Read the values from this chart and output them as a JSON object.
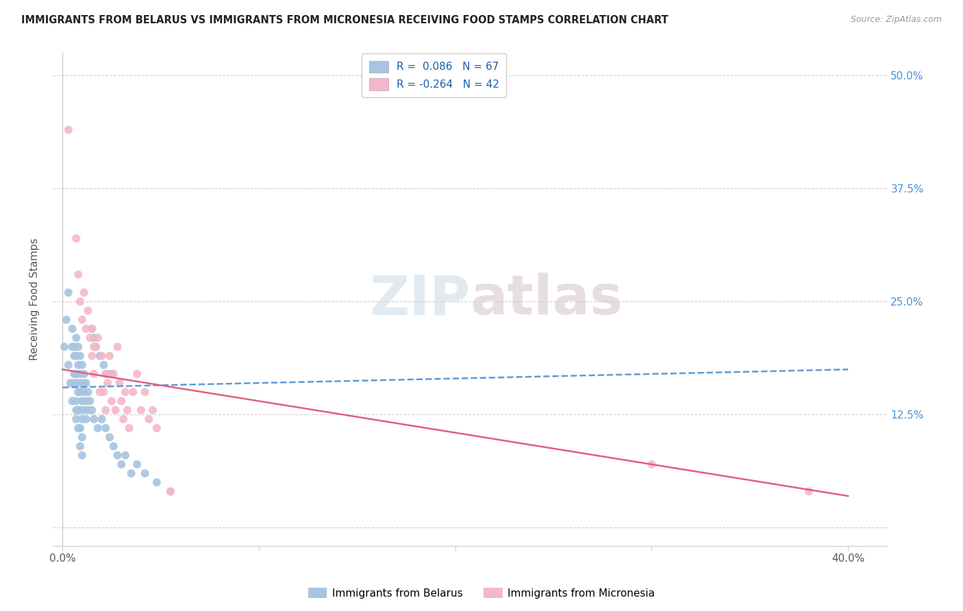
{
  "title": "IMMIGRANTS FROM BELARUS VS IMMIGRANTS FROM MICRONESIA RECEIVING FOOD STAMPS CORRELATION CHART",
  "source": "Source: ZipAtlas.com",
  "ylabel": "Receiving Food Stamps",
  "color_belarus": "#a8c4e0",
  "color_micronesia": "#f4b8c8",
  "color_line_belarus": "#5b9bd5",
  "color_line_micronesia": "#e0607e",
  "watermark_zip": "ZIP",
  "watermark_atlas": "atlas",
  "belarus_R": 0.086,
  "belarus_N": 67,
  "micronesia_R": -0.264,
  "micronesia_N": 42,
  "belarus_line_x": [
    0.0,
    0.4
  ],
  "belarus_line_y": [
    0.155,
    0.175
  ],
  "micronesia_line_x": [
    0.0,
    0.4
  ],
  "micronesia_line_y": [
    0.175,
    0.035
  ],
  "belarus_points": [
    [
      0.001,
      0.2
    ],
    [
      0.002,
      0.23
    ],
    [
      0.003,
      0.26
    ],
    [
      0.003,
      0.18
    ],
    [
      0.004,
      0.16
    ],
    [
      0.005,
      0.22
    ],
    [
      0.005,
      0.14
    ],
    [
      0.005,
      0.2
    ],
    [
      0.006,
      0.2
    ],
    [
      0.006,
      0.19
    ],
    [
      0.006,
      0.17
    ],
    [
      0.006,
      0.16
    ],
    [
      0.007,
      0.21
    ],
    [
      0.007,
      0.19
    ],
    [
      0.007,
      0.17
    ],
    [
      0.007,
      0.14
    ],
    [
      0.007,
      0.13
    ],
    [
      0.007,
      0.12
    ],
    [
      0.008,
      0.2
    ],
    [
      0.008,
      0.18
    ],
    [
      0.008,
      0.16
    ],
    [
      0.008,
      0.15
    ],
    [
      0.008,
      0.13
    ],
    [
      0.008,
      0.11
    ],
    [
      0.009,
      0.19
    ],
    [
      0.009,
      0.17
    ],
    [
      0.009,
      0.15
    ],
    [
      0.009,
      0.13
    ],
    [
      0.009,
      0.11
    ],
    [
      0.009,
      0.09
    ],
    [
      0.01,
      0.18
    ],
    [
      0.01,
      0.16
    ],
    [
      0.01,
      0.14
    ],
    [
      0.01,
      0.12
    ],
    [
      0.01,
      0.1
    ],
    [
      0.01,
      0.08
    ],
    [
      0.011,
      0.17
    ],
    [
      0.011,
      0.15
    ],
    [
      0.011,
      0.13
    ],
    [
      0.012,
      0.16
    ],
    [
      0.012,
      0.14
    ],
    [
      0.012,
      0.12
    ],
    [
      0.013,
      0.15
    ],
    [
      0.013,
      0.13
    ],
    [
      0.014,
      0.14
    ],
    [
      0.015,
      0.22
    ],
    [
      0.015,
      0.13
    ],
    [
      0.016,
      0.21
    ],
    [
      0.016,
      0.12
    ],
    [
      0.017,
      0.2
    ],
    [
      0.018,
      0.11
    ],
    [
      0.019,
      0.19
    ],
    [
      0.02,
      0.12
    ],
    [
      0.021,
      0.18
    ],
    [
      0.022,
      0.11
    ],
    [
      0.023,
      0.17
    ],
    [
      0.024,
      0.1
    ],
    [
      0.025,
      0.17
    ],
    [
      0.026,
      0.09
    ],
    [
      0.028,
      0.08
    ],
    [
      0.03,
      0.07
    ],
    [
      0.032,
      0.08
    ],
    [
      0.035,
      0.06
    ],
    [
      0.038,
      0.07
    ],
    [
      0.042,
      0.06
    ],
    [
      0.048,
      0.05
    ],
    [
      0.055,
      0.04
    ]
  ],
  "micronesia_points": [
    [
      0.003,
      0.44
    ],
    [
      0.007,
      0.32
    ],
    [
      0.008,
      0.28
    ],
    [
      0.009,
      0.25
    ],
    [
      0.01,
      0.23
    ],
    [
      0.011,
      0.26
    ],
    [
      0.012,
      0.22
    ],
    [
      0.013,
      0.24
    ],
    [
      0.014,
      0.21
    ],
    [
      0.015,
      0.19
    ],
    [
      0.015,
      0.22
    ],
    [
      0.016,
      0.2
    ],
    [
      0.016,
      0.17
    ],
    [
      0.017,
      0.2
    ],
    [
      0.018,
      0.21
    ],
    [
      0.019,
      0.15
    ],
    [
      0.02,
      0.19
    ],
    [
      0.021,
      0.15
    ],
    [
      0.022,
      0.17
    ],
    [
      0.022,
      0.13
    ],
    [
      0.023,
      0.16
    ],
    [
      0.024,
      0.19
    ],
    [
      0.025,
      0.14
    ],
    [
      0.026,
      0.17
    ],
    [
      0.027,
      0.13
    ],
    [
      0.028,
      0.2
    ],
    [
      0.029,
      0.16
    ],
    [
      0.03,
      0.14
    ],
    [
      0.031,
      0.12
    ],
    [
      0.032,
      0.15
    ],
    [
      0.033,
      0.13
    ],
    [
      0.034,
      0.11
    ],
    [
      0.036,
      0.15
    ],
    [
      0.038,
      0.17
    ],
    [
      0.04,
      0.13
    ],
    [
      0.042,
      0.15
    ],
    [
      0.044,
      0.12
    ],
    [
      0.046,
      0.13
    ],
    [
      0.048,
      0.11
    ],
    [
      0.055,
      0.04
    ],
    [
      0.3,
      0.07
    ],
    [
      0.38,
      0.04
    ]
  ],
  "xlim": [
    -0.005,
    0.42
  ],
  "ylim": [
    -0.02,
    0.525
  ],
  "x_ticks": [
    0.0,
    0.1,
    0.2,
    0.3,
    0.4
  ],
  "x_tick_labels": [
    "0.0%",
    "",
    "",
    "",
    "40.0%"
  ],
  "y_ticks": [
    0.0,
    0.125,
    0.25,
    0.375,
    0.5
  ],
  "y_tick_labels_right": [
    "",
    "12.5%",
    "25.0%",
    "37.5%",
    "50.0%"
  ],
  "figsize": [
    14.06,
    8.92
  ],
  "dpi": 100
}
